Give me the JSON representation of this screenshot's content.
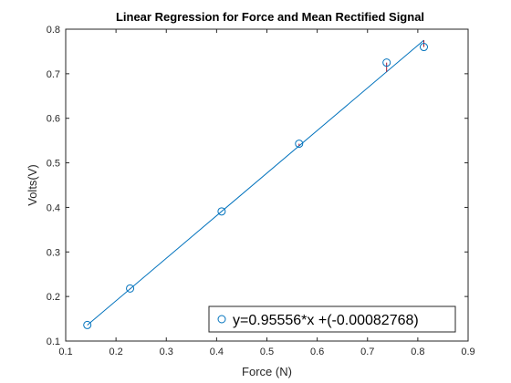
{
  "chart_data": {
    "type": "scatter",
    "title": "Linear Regression for Force and Mean Rectified Signal",
    "xlabel": "Force (N)",
    "ylabel": "Volts(V)",
    "xlim": [
      0.1,
      0.9
    ],
    "ylim": [
      0.1,
      0.8
    ],
    "xticks": [
      "0.1",
      "0.2",
      "0.3",
      "0.4",
      "0.5",
      "0.6",
      "0.7",
      "0.8",
      "0.9"
    ],
    "yticks": [
      "0.1",
      "0.2",
      "0.3",
      "0.4",
      "0.5",
      "0.6",
      "0.7",
      "0.8"
    ],
    "grid": false,
    "legend_position": "bottom-right",
    "series": [
      {
        "name": "y=0.95556*x +(-0.00082768)",
        "marker": "circle",
        "color": "#0072bd",
        "x": [
          0.143,
          0.228,
          0.41,
          0.564,
          0.738,
          0.812
        ],
        "y": [
          0.136,
          0.218,
          0.391,
          0.543,
          0.725,
          0.76
        ]
      }
    ],
    "fit_line": {
      "slope": 0.95556,
      "intercept": -0.00082768,
      "x_range": [
        0.143,
        0.812
      ],
      "color": "#0072bd"
    },
    "residual_color": "#a2142f"
  }
}
